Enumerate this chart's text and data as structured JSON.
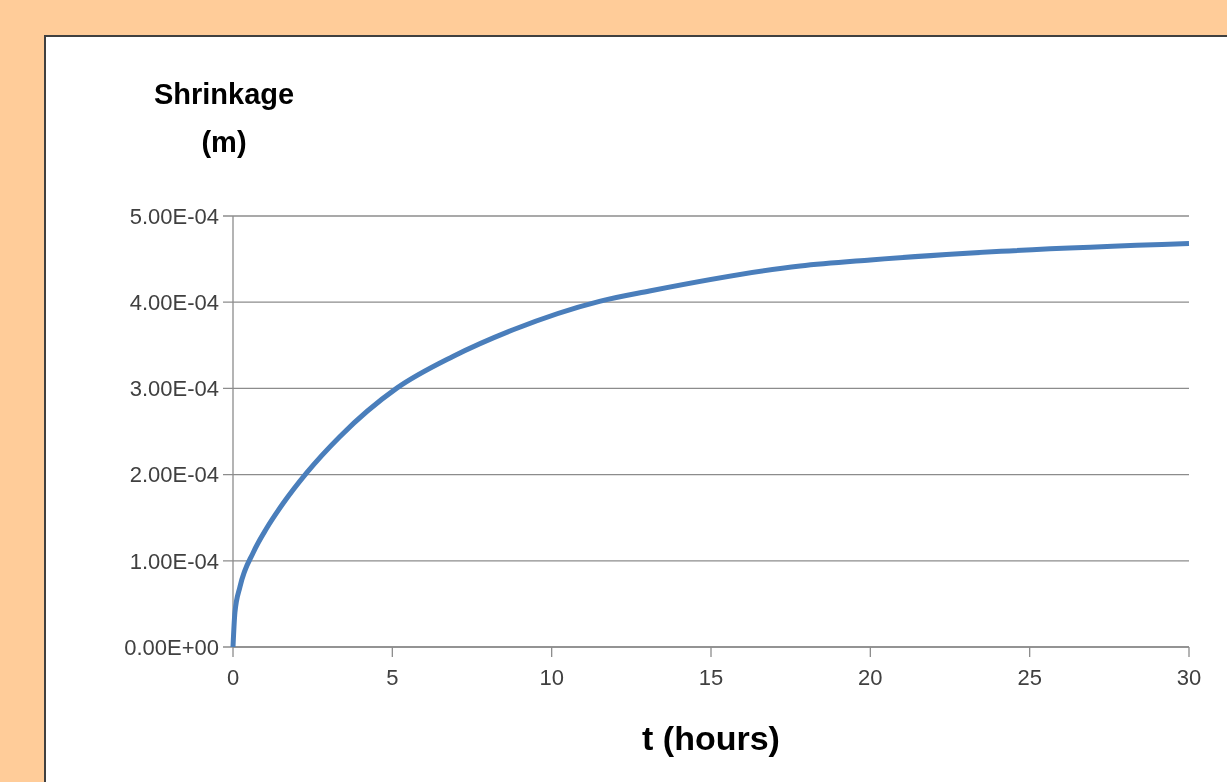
{
  "chart_data": {
    "type": "line",
    "ylabel": "Shrinkage\n(m)",
    "xlabel": "t (hours)",
    "x": [
      0,
      0.06,
      0.22,
      0.64,
      1.06,
      1.58,
      2.31,
      3.35,
      5.13,
      6.9,
      8.79,
      11.5,
      13.07,
      17.8,
      20,
      24.1,
      30
    ],
    "series": [
      {
        "color": "#4a7ebb",
        "values": [
          0,
          4e-05,
          7e-05,
          0.00011,
          0.000138,
          0.000167,
          0.000202,
          0.000244,
          0.0003,
          0.000337,
          0.000368,
          0.000401,
          0.000413,
          0.000442,
          0.000449,
          0.000459,
          0.000468
        ]
      }
    ],
    "xlim": [
      0,
      30
    ],
    "xticks": [
      0,
      5,
      10,
      15,
      20,
      25,
      30
    ],
    "ylim": [
      0,
      0.0005
    ],
    "yticks": [
      {
        "value": 0,
        "label": "0.00E+00"
      },
      {
        "value": 0.0001,
        "label": "1.00E-04"
      },
      {
        "value": 0.0002,
        "label": "2.00E-04"
      },
      {
        "value": 0.0003,
        "label": "3.00E-04"
      },
      {
        "value": 0.0004,
        "label": "4.00E-04"
      },
      {
        "value": 0.0005,
        "label": "5.00E-04"
      }
    ],
    "grid": "y",
    "marker": "none",
    "line_style": "solid"
  }
}
